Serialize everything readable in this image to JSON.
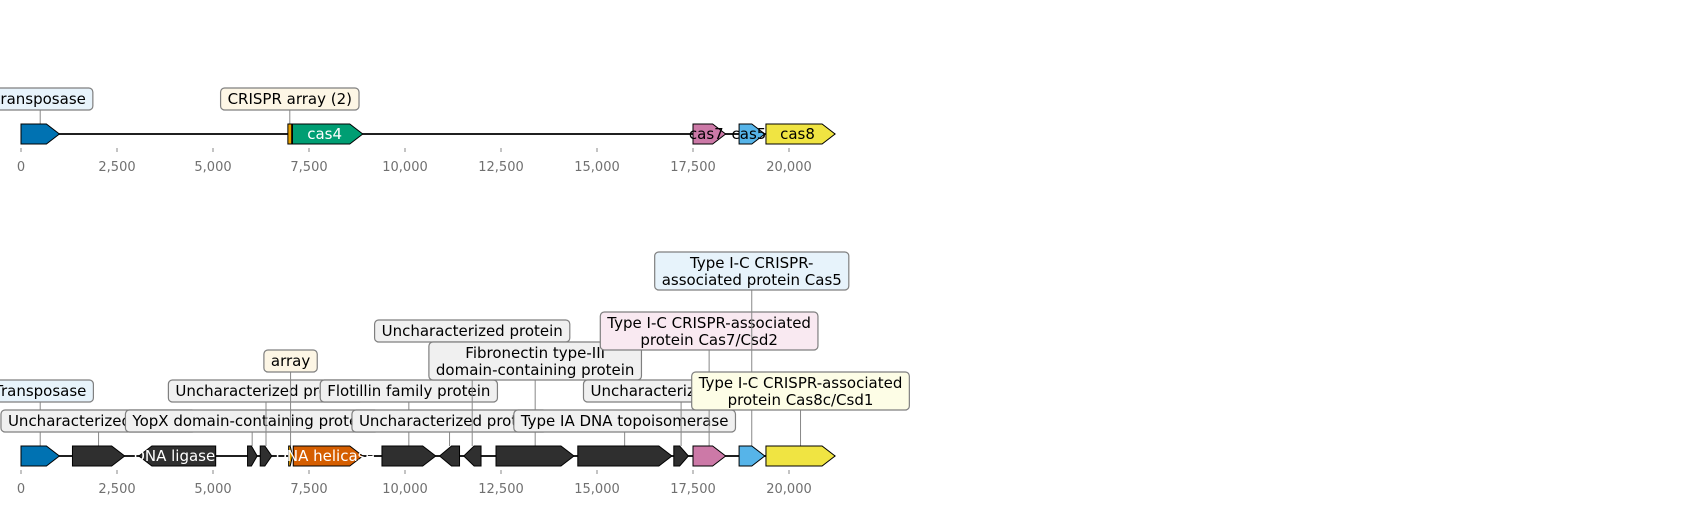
{
  "tracks": [
    {
      "id": "top",
      "genes": [
        {
          "start": 0,
          "end": 1000,
          "strand": 1,
          "color": "#0072b2",
          "label": "",
          "label_color": "#ffffff"
        },
        {
          "start": 6950,
          "end": 7050,
          "strand": 0,
          "color": "#e69f00",
          "label": "",
          "label_color": "#000000"
        },
        {
          "start": 7070,
          "end": 8900,
          "strand": 1,
          "color": "#009e73",
          "label": "cas4",
          "label_color": "#ffffff"
        },
        {
          "start": 17500,
          "end": 18350,
          "strand": 1,
          "color": "#cc79a7",
          "label": "cas7",
          "label_color": "#000000"
        },
        {
          "start": 18700,
          "end": 19370,
          "strand": 1,
          "color": "#56b4e9",
          "label": "cas5",
          "label_color": "#000000"
        },
        {
          "start": 19400,
          "end": 21200,
          "strand": 1,
          "color": "#f0e442",
          "label": "cas8",
          "label_color": "#000000"
        }
      ],
      "callouts": [
        {
          "text": [
            "transposase"
          ],
          "x": 500,
          "tier": 1,
          "bg": "#e7f3fb"
        },
        {
          "text": [
            "CRISPR array (2)"
          ],
          "x": 7000,
          "tier": 1,
          "bg": "#fdf6e5"
        }
      ],
      "ticks": [
        "0",
        "2,500",
        "5,000",
        "7,500",
        "10,000",
        "12,500",
        "15,000",
        "17,500",
        "20,000"
      ]
    },
    {
      "id": "bottom",
      "genes": [
        {
          "start": 0,
          "end": 1000,
          "strand": 1,
          "color": "#0072b2",
          "label": "",
          "label_color": "#ffffff"
        },
        {
          "start": 1340,
          "end": 2700,
          "strand": 1,
          "color": "#2f2f2f",
          "label": "",
          "label_color": "#ffffff"
        },
        {
          "start": 3070,
          "end": 5070,
          "strand": -1,
          "color": "#2f2f2f",
          "label": "DNA ligase",
          "label_color": "#ffffff"
        },
        {
          "start": 5900,
          "end": 6150,
          "strand": 1,
          "color": "#2f2f2f",
          "label": "",
          "label_color": "#ffffff"
        },
        {
          "start": 6230,
          "end": 6530,
          "strand": 1,
          "color": "#2f2f2f",
          "label": "",
          "label_color": "#ffffff"
        },
        {
          "start": 6970,
          "end": 7070,
          "strand": 1,
          "color": "#e69f00",
          "label": "",
          "label_color": "#000000"
        },
        {
          "start": 7090,
          "end": 8900,
          "strand": 1,
          "color": "#d55e00",
          "label": "DNA helicase",
          "label_color": "#ffffff"
        },
        {
          "start": 9400,
          "end": 10800,
          "strand": 1,
          "color": "#2f2f2f",
          "label": "",
          "label_color": "#ffffff"
        },
        {
          "start": 10900,
          "end": 11420,
          "strand": -1,
          "color": "#2f2f2f",
          "label": "",
          "label_color": "#ffffff"
        },
        {
          "start": 11530,
          "end": 11980,
          "strand": -1,
          "color": "#2f2f2f",
          "label": "",
          "label_color": "#ffffff"
        },
        {
          "start": 12370,
          "end": 14400,
          "strand": 1,
          "color": "#2f2f2f",
          "label": "",
          "label_color": "#ffffff"
        },
        {
          "start": 14500,
          "end": 16950,
          "strand": 1,
          "color": "#2f2f2f",
          "label": "",
          "label_color": "#ffffff"
        },
        {
          "start": 17000,
          "end": 17380,
          "strand": 1,
          "color": "#2f2f2f",
          "label": "",
          "label_color": "#ffffff"
        },
        {
          "start": 17500,
          "end": 18350,
          "strand": 1,
          "color": "#cc79a7",
          "label": "",
          "label_color": "#000000"
        },
        {
          "start": 18700,
          "end": 19370,
          "strand": 1,
          "color": "#56b4e9",
          "label": "",
          "label_color": "#000000"
        },
        {
          "start": 19400,
          "end": 21200,
          "strand": 1,
          "color": "#f0e442",
          "label": "",
          "label_color": "#000000"
        }
      ],
      "callouts": [
        {
          "text": [
            "Transposase"
          ],
          "x": 500,
          "tier": 2,
          "bg": "#e7f3fb"
        },
        {
          "text": [
            "Uncharacterized protein"
          ],
          "x": 2020,
          "tier": 1,
          "bg": "#f0f0f0"
        },
        {
          "text": [
            "YopX domain-containing protein"
          ],
          "x": 6020,
          "tier": 1,
          "bg": "#f0f0f0"
        },
        {
          "text": [
            "Uncharacterized protein"
          ],
          "x": 6380,
          "tier": 2,
          "bg": "#f0f0f0"
        },
        {
          "text": [
            "array"
          ],
          "x": 7020,
          "tier": 3,
          "bg": "#fdf6e5"
        },
        {
          "text": [
            "Flotillin family protein"
          ],
          "x": 10100,
          "tier": 2,
          "bg": "#f0f0f0"
        },
        {
          "text": [
            "Uncharacterized protein"
          ],
          "x": 11160,
          "tier": 1,
          "bg": "#f0f0f0"
        },
        {
          "text": [
            "Uncharacterized protein"
          ],
          "x": 11750,
          "tier": 4,
          "bg": "#f0f0f0"
        },
        {
          "text": [
            "Fibronectin type-III",
            "domain-containing protein"
          ],
          "x": 13390,
          "tier": 3,
          "bg": "#f0f0f0"
        },
        {
          "text": [
            "Type IA DNA topoisomerase"
          ],
          "x": 15720,
          "tier": 1,
          "bg": "#f0f0f0"
        },
        {
          "text": [
            "Uncharacterized protein"
          ],
          "x": 17190,
          "tier": 2,
          "bg": "#f0f0f0"
        },
        {
          "text": [
            "Type I-C CRISPR-associated",
            "protein Cas7/Csd2"
          ],
          "x": 17920,
          "tier": 4,
          "bg": "#f9e9f1"
        },
        {
          "text": [
            "Type I-C CRISPR-",
            "associated protein Cas5"
          ],
          "x": 19030,
          "tier": 6,
          "bg": "#e7f3fb"
        },
        {
          "text": [
            "Type I-C CRISPR-associated",
            "protein Cas8c/Csd1"
          ],
          "x": 20300,
          "tier": 2,
          "bg": "#fdfde6"
        }
      ],
      "ticks": [
        "0",
        "2,500",
        "5,000",
        "7,500",
        "10,000",
        "12,500",
        "15,000",
        "17,500",
        "20,000"
      ]
    }
  ]
}
